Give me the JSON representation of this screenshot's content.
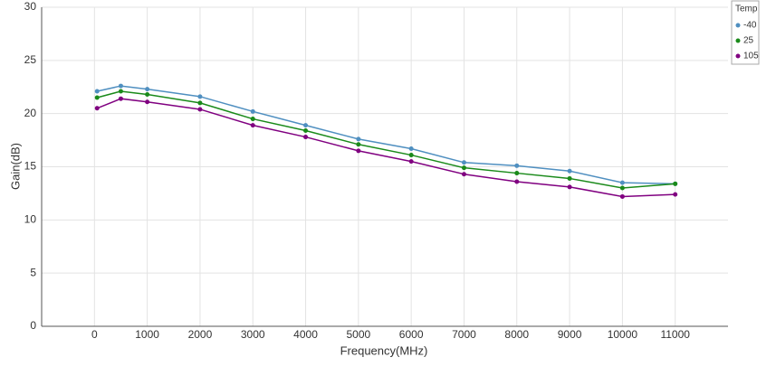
{
  "chart_data": {
    "type": "line",
    "x_label": "Frequency(MHz)",
    "y_label": "Gain(dB)",
    "legend_title": "Temp",
    "legend_position": "top-right",
    "grid": true,
    "x": [
      50,
      500,
      1000,
      2000,
      3000,
      4000,
      5000,
      6000,
      7000,
      8000,
      9000,
      10000,
      11000
    ],
    "series": [
      {
        "name": "-40",
        "color": "#4f8fc0",
        "values": [
          22.1,
          22.6,
          22.3,
          21.6,
          20.2,
          18.9,
          17.6,
          16.7,
          15.4,
          15.1,
          14.6,
          13.5,
          13.4
        ]
      },
      {
        "name": "25",
        "color": "#1a8a1a",
        "values": [
          21.5,
          22.1,
          21.8,
          21.0,
          19.5,
          18.4,
          17.1,
          16.1,
          14.9,
          14.4,
          13.9,
          13.0,
          13.4
        ]
      },
      {
        "name": "105",
        "color": "#800080",
        "values": [
          20.5,
          21.4,
          21.1,
          20.4,
          18.9,
          17.8,
          16.5,
          15.5,
          14.3,
          13.6,
          13.1,
          12.2,
          12.4
        ]
      }
    ],
    "xlim": [
      -1000,
      12000
    ],
    "xticks": [
      0,
      1000,
      2000,
      3000,
      4000,
      5000,
      6000,
      7000,
      8000,
      9000,
      10000,
      11000
    ],
    "ylim": [
      0,
      30
    ],
    "yticks": [
      0,
      5,
      10,
      15,
      20,
      25,
      30
    ]
  }
}
